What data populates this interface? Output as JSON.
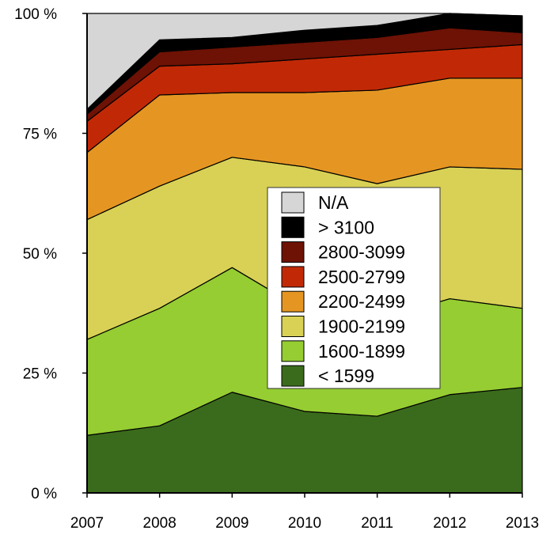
{
  "chart_data": {
    "type": "area",
    "stacked": true,
    "normalized": true,
    "x": [
      "2007",
      "2008",
      "2009",
      "2010",
      "2011",
      "2012",
      "2013"
    ],
    "ylim": [
      0,
      100
    ],
    "yticks": [
      {
        "value": 0,
        "label": "0 %"
      },
      {
        "value": 25,
        "label": "25 %"
      },
      {
        "value": 50,
        "label": "50 %"
      },
      {
        "value": 75,
        "label": "75 %"
      },
      {
        "value": 100,
        "label": "100 %"
      }
    ],
    "grid": false,
    "legend_position": "center-right",
    "series": [
      {
        "name": "< 1599",
        "color": "#3a6b1c",
        "values": [
          12,
          14,
          21,
          17,
          16,
          20.5,
          22
        ]
      },
      {
        "name": "1600-1899",
        "color": "#95cd32",
        "values": [
          20,
          24.5,
          26,
          21,
          20,
          20,
          16.5
        ]
      },
      {
        "name": "1900-2199",
        "color": "#d8d155",
        "values": [
          25,
          25.5,
          23,
          30,
          28.5,
          27.5,
          29
        ]
      },
      {
        "name": "2200-2499",
        "color": "#e59622",
        "values": [
          14,
          19,
          13.5,
          15.5,
          19.5,
          18.5,
          19
        ]
      },
      {
        "name": "2500-2799",
        "color": "#c12906",
        "values": [
          6.5,
          6,
          6,
          7,
          7.5,
          6,
          7
        ]
      },
      {
        "name": "2800-3099",
        "color": "#6d1205",
        "values": [
          1.5,
          3,
          3.5,
          3.5,
          3.5,
          4.5,
          2.5
        ]
      },
      {
        "name": "> 3100",
        "color": "#000000",
        "values": [
          1,
          2.5,
          2,
          2.5,
          2.5,
          3,
          3.5
        ]
      },
      {
        "name": "N/A",
        "color": "#d6d6d6",
        "values": [
          20,
          5.5,
          5,
          3.5,
          2.5,
          0,
          0
        ]
      }
    ],
    "legend_order": [
      "N/A",
      "> 3100",
      "2800-3099",
      "2500-2799",
      "2200-2499",
      "1900-2199",
      "1600-1899",
      "< 1599"
    ]
  }
}
